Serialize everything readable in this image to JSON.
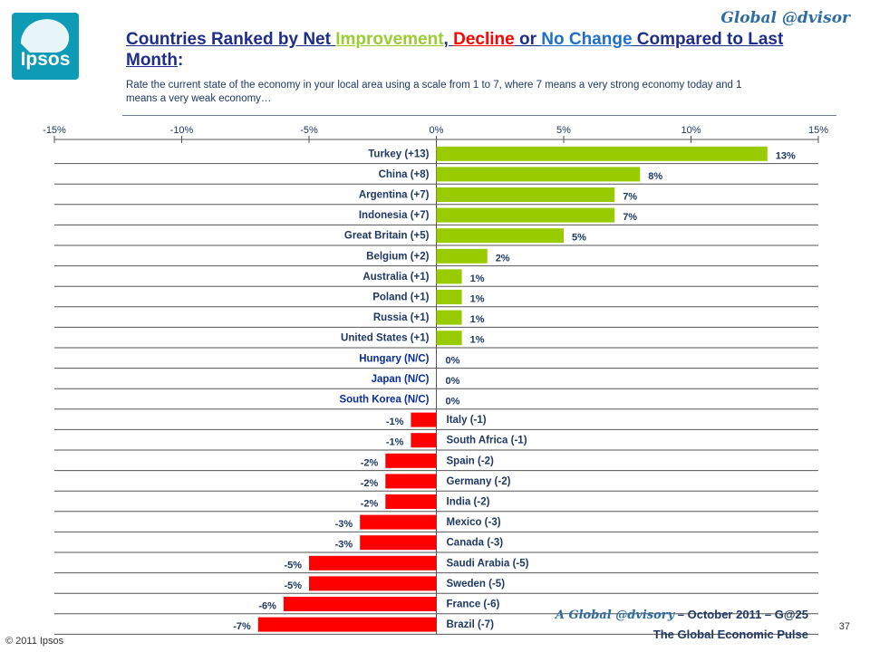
{
  "header": {
    "brand": "Global @dvisor",
    "logo_text": "Ipsos",
    "title_parts": [
      {
        "text": "Countries Ranked by Net ",
        "color": "#1f2d8a"
      },
      {
        "text": "Improvement",
        "color": "#9acd32"
      },
      {
        "text": ", ",
        "color": "#1f2d8a"
      },
      {
        "text": "Decline",
        "color": "#ff0000"
      },
      {
        "text": " or ",
        "color": "#1f2d8a"
      },
      {
        "text": "No Change",
        "color": "#1e6fd0"
      },
      {
        "text": " Compared to Last Month",
        "color": "#1f2d8a"
      },
      {
        "text": ":",
        "color": "#1f2d8a"
      }
    ],
    "subtitle": "Rate the current state of the economy in your local area using a scale from 1 to 7, where 7 means a very strong economy today and 1 means a very weak economy…"
  },
  "chart_data": {
    "type": "bar",
    "orientation": "horizontal",
    "xlim": [
      -15,
      15
    ],
    "ticks": [
      "-15%",
      "-10%",
      "-5%",
      "0%",
      "5%",
      "10%",
      "15%"
    ],
    "tick_values": [
      -15,
      -10,
      -5,
      0,
      5,
      10,
      15
    ],
    "colors": {
      "positive": "#99cc00",
      "negative": "#ff0000",
      "nochange_label": "#0a2d9c"
    },
    "categories": [
      "Turkey (+13)",
      "China (+8)",
      "Argentina (+7)",
      "Indonesia (+7)",
      "Great Britain (+5)",
      "Belgium (+2)",
      "Australia (+1)",
      "Poland (+1)",
      "Russia (+1)",
      "United States (+1)",
      "Hungary (N/C)",
      "Japan (N/C)",
      "South Korea (N/C)",
      "Italy (-1)",
      "South Africa (-1)",
      "Spain (-2)",
      "Germany (-2)",
      "India (-2)",
      "Mexico (-3)",
      "Canada (-3)",
      "Saudi Arabia (-5)",
      "Sweden (-5)",
      "France (-6)",
      "Brazil (-7)"
    ],
    "values": [
      13,
      8,
      7,
      7,
      5,
      2,
      1,
      1,
      1,
      1,
      0,
      0,
      0,
      -1,
      -1,
      -2,
      -2,
      -2,
      -3,
      -3,
      -5,
      -5,
      -6,
      -7
    ],
    "value_labels": [
      "13%",
      "8%",
      "7%",
      "7%",
      "5%",
      "2%",
      "1%",
      "1%",
      "1%",
      "1%",
      "0%",
      "0%",
      "0%",
      "-1%",
      "-1%",
      "-2%",
      "-2%",
      "-2%",
      "-3%",
      "-3%",
      "-5%",
      "-5%",
      "-6%",
      "-7%"
    ]
  },
  "footer": {
    "copyright": "© 2011 Ipsos",
    "line1_italic": "A Global @dvisory",
    "line1_rest": " – October 2011 – G@25",
    "line2": "The Global Economic Pulse",
    "page_number": "37"
  }
}
